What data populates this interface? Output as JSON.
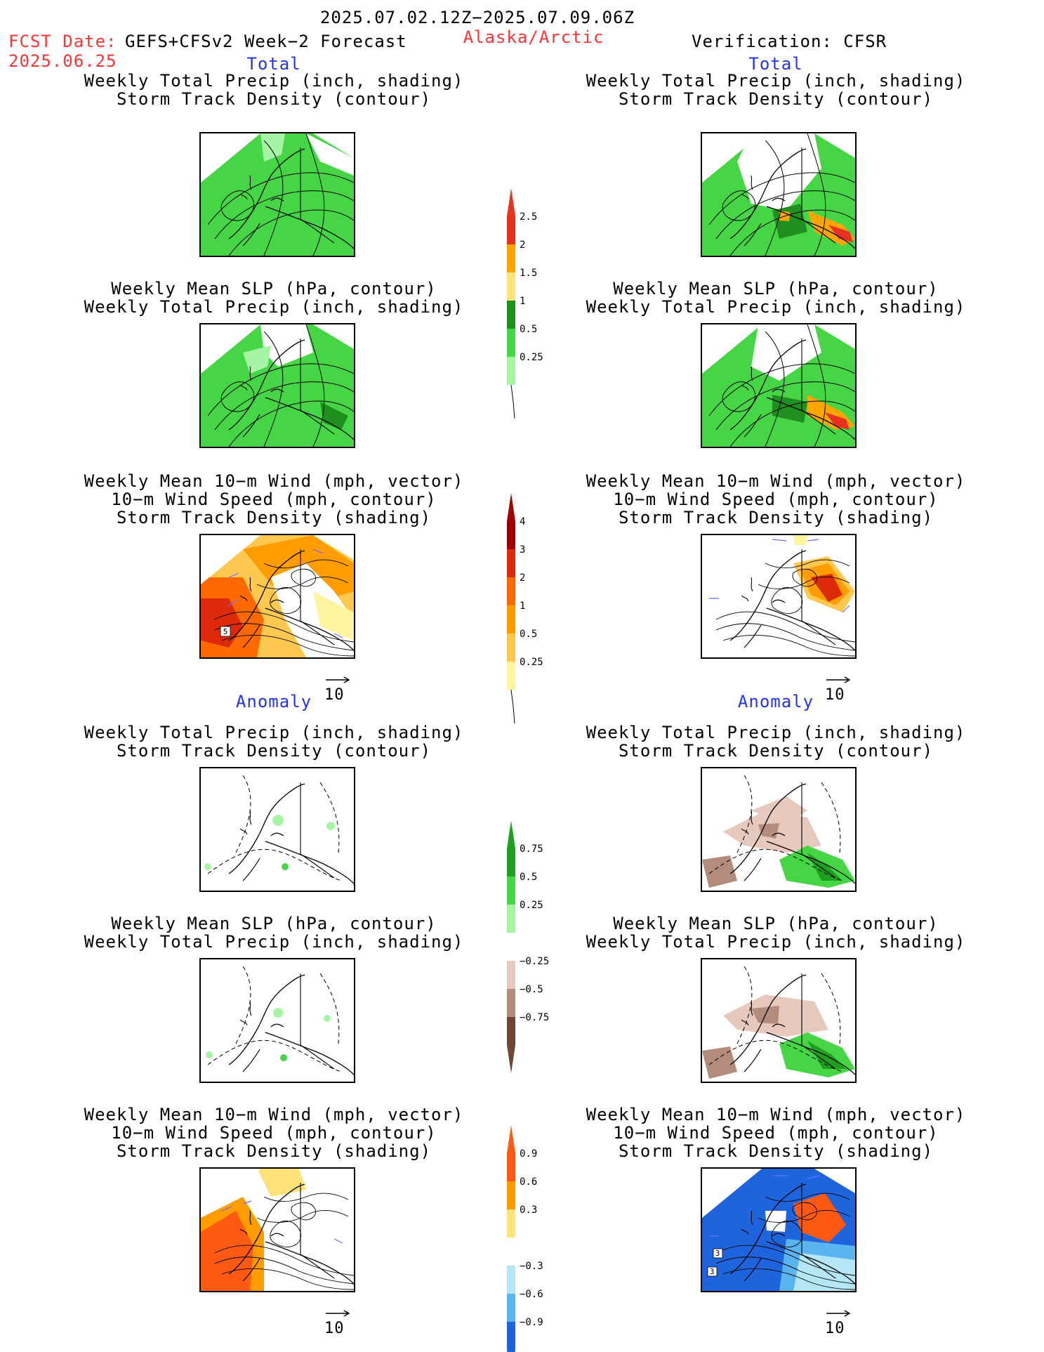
{
  "header": {
    "date_range": "2025.07.02.12Z−2025.07.09.06Z",
    "fcst_label": "FCST Date:",
    "fcst_model": "GEFS+CFSv2 Week−2 Forecast",
    "fcst_date": "2025.06.25",
    "region": "Alaska/Arctic",
    "verification": "Verification: CFSR"
  },
  "sections": {
    "total": "Total",
    "anomaly": "Anomaly"
  },
  "panel_titles": {
    "precip_storm": [
      "Weekly Total Precip (inch, shading)",
      "Storm Track Density (contour)"
    ],
    "slp_precip": [
      "Weekly Mean SLP (hPa, contour)",
      "Weekly Total Precip (inch, shading)"
    ],
    "wind": [
      "Weekly Mean 10−m Wind (mph, vector)",
      "10−m Wind Speed (mph, contour)",
      "Storm Track Density (shading)"
    ]
  },
  "vector_reference": "10",
  "map_labels": {
    "fcst_total_wind": "5",
    "ver_anom_wind_a": "3",
    "ver_anom_wind_b": "3"
  },
  "colorbars": {
    "precip_total": {
      "ticks": [
        "2.5",
        "2",
        "1.5",
        "1",
        "0.5",
        "0.25"
      ],
      "colors": [
        "#e8321e",
        "#ffa500",
        "#ffe27a",
        "#1f8f1f",
        "#45d545",
        "#a5f5a5"
      ]
    },
    "storm_total": {
      "ticks": [
        "4",
        "3",
        "2",
        "1",
        "0.5",
        "0.25"
      ],
      "colors": [
        "#a00000",
        "#dc2a0a",
        "#ff6a00",
        "#ff9d00",
        "#ffc850",
        "#fff4a0"
      ]
    },
    "precip_anom": {
      "ticks_pos": [
        "0.75",
        "0.5",
        "0.25"
      ],
      "ticks_neg": [
        "−0.25",
        "−0.5",
        "−0.75"
      ],
      "colors_pos": [
        "#1f9f1f",
        "#45d545",
        "#a5f5a5"
      ],
      "colors_neg": [
        "#e6c8bc",
        "#b48c7c",
        "#6e4632"
      ]
    },
    "storm_anom": {
      "ticks_pos": [
        "0.9",
        "0.6",
        "0.3"
      ],
      "ticks_neg": [
        "−0.3",
        "−0.6",
        "−0.9"
      ],
      "colors_pos": [
        "#ff5a14",
        "#ff9d00",
        "#ffe27a"
      ],
      "colors_neg": [
        "#b4e6f5",
        "#5ab4f0",
        "#1e64dc"
      ]
    }
  },
  "colors": {
    "header_red": "#ff3333",
    "section_blue": "#2233ee",
    "vector_blue": "#6a6aff"
  }
}
